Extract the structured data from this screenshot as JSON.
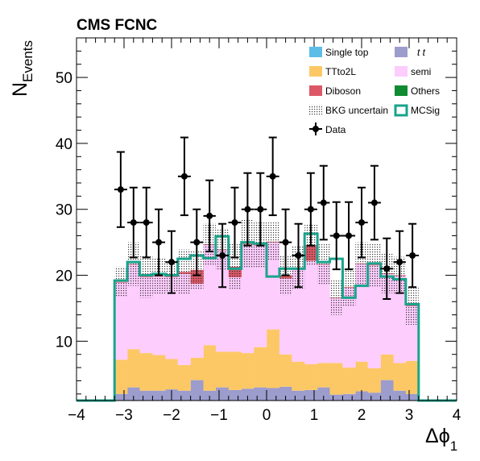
{
  "chart_data": {
    "type": "bar",
    "title": "CMS FCNC",
    "xlabel": "Δϕ",
    "xlabel_sub": "1",
    "ylabel": "N",
    "ylabel_sub": "Events",
    "xlim": [
      -4,
      4
    ],
    "ylim": [
      1,
      56
    ],
    "x_ticks": [
      "−4",
      "−3",
      "−2",
      "−1",
      "0",
      "1",
      "2",
      "3",
      "4"
    ],
    "y_ticks": [
      "10",
      "20",
      "30",
      "40",
      "50"
    ],
    "bin_edges": [
      -3.2,
      -2.93,
      -2.67,
      -2.4,
      -2.13,
      -1.87,
      -1.6,
      -1.33,
      -1.07,
      -0.8,
      -0.53,
      -0.27,
      0,
      0.27,
      0.53,
      0.8,
      1.07,
      1.33,
      1.6,
      1.87,
      2.13,
      2.4,
      2.67,
      2.93,
      3.2
    ],
    "series": [
      {
        "name": "Single top",
        "color": "#5bbde8",
        "values": [
          0.4,
          0.4,
          0.4,
          0.4,
          0.4,
          0.4,
          0.4,
          0.4,
          0.4,
          0.4,
          0.4,
          0.4,
          0.4,
          0.4,
          0.4,
          0.4,
          0.4,
          0.4,
          0.4,
          0.4,
          0.4,
          0.4,
          0.4,
          0.4
        ]
      },
      {
        "name": "t t",
        "color": "#9c9ccd",
        "values": [
          1.6,
          2.6,
          2.1,
          2.1,
          2.3,
          2.1,
          3.7,
          2.1,
          2.6,
          2.2,
          2.4,
          2.6,
          2.5,
          2.7,
          2.1,
          2.2,
          2.6,
          1.5,
          1.6,
          2.0,
          1.8,
          3.7,
          2.1,
          1.6
        ]
      },
      {
        "name": "TTto2L",
        "color": "#fcc865",
        "values": [
          5.2,
          5.8,
          5.7,
          5.4,
          4.6,
          3.9,
          3.4,
          6.9,
          5.4,
          5.8,
          5.4,
          6.1,
          8.9,
          4.9,
          4.4,
          3.9,
          3.7,
          4.8,
          4.0,
          4.5,
          3.7,
          3.9,
          4.2,
          5.0
        ]
      },
      {
        "name": "semi",
        "color": "#fdcdfd",
        "values": [
          11.7,
          12.8,
          11.5,
          11.9,
          12.4,
          13.8,
          11.2,
          15.2,
          15.4,
          11.3,
          16.5,
          15.4,
          13.2,
          11.5,
          14.1,
          15.7,
          14.9,
          9.8,
          12.1,
          14.8,
          15.6,
          12.2,
          13.2,
          8.3
        ]
      },
      {
        "name": "Diboson",
        "color": "#dc5866",
        "values": [
          0.1,
          0.1,
          0.1,
          0.1,
          0.1,
          0.3,
          2.1,
          0.1,
          0.1,
          1.6,
          0.1,
          0.1,
          0.1,
          0.5,
          0.1,
          2.4,
          0.1,
          0.1,
          0.1,
          0.1,
          0.1,
          0.1,
          0.1,
          0.1
        ]
      },
      {
        "name": "Others",
        "color": "#0f8b31",
        "values": [
          0,
          0,
          0,
          0,
          0,
          0,
          0,
          0,
          0,
          0,
          0,
          0,
          0,
          0,
          0,
          0,
          0,
          0,
          0,
          0,
          0,
          0,
          0,
          0
        ]
      }
    ],
    "bkg_uncertainty": {
      "name": "BKG uncertain",
      "values": [
        2.3,
        3.3,
        3.2,
        2.8,
        2.2,
        3.4,
        3.0,
        3.2,
        3.1,
        3.5,
        3.6,
        3.4,
        2.9,
        3.0,
        3.3,
        3.1,
        3.2,
        2.6,
        3.0,
        3.2,
        3.3,
        3.0,
        2.8,
        2.9
      ]
    },
    "mc_signal": {
      "name": "MCSig",
      "color": "#1aa38c",
      "values": [
        19.2,
        22.0,
        20.0,
        20.2,
        20.0,
        22.5,
        23.0,
        22.6,
        25.9,
        21.0,
        25.0,
        24.8,
        19.8,
        21.0,
        21.0,
        26.3,
        22.0,
        22.5,
        16.6,
        18.4,
        21.8,
        19.8,
        19.4,
        15.6
      ]
    },
    "data": {
      "name": "Data",
      "x": [
        -3.07,
        -2.8,
        -2.53,
        -2.27,
        -2.0,
        -1.73,
        -1.47,
        -1.2,
        -0.93,
        -0.67,
        -0.4,
        -0.13,
        0.13,
        0.4,
        0.67,
        0.93,
        1.2,
        1.47,
        1.73,
        2.0,
        2.27,
        2.53,
        2.8,
        3.07
      ],
      "y": [
        33,
        28,
        28,
        25,
        22,
        35,
        25,
        29,
        23,
        28,
        30,
        30,
        35,
        25,
        23,
        30,
        31,
        26,
        26,
        28,
        31,
        21,
        22,
        23
      ],
      "err": [
        5.7,
        5.3,
        5.3,
        5.0,
        4.7,
        5.9,
        5.0,
        5.4,
        4.8,
        5.3,
        5.5,
        5.5,
        5.9,
        5.0,
        4.8,
        5.5,
        5.6,
        5.1,
        5.1,
        5.3,
        5.6,
        4.6,
        4.7,
        4.8
      ]
    },
    "legend": {
      "position": "top-right",
      "entries": [
        {
          "label": "Single top",
          "kind": "fill",
          "color": "#5bbde8"
        },
        {
          "label": "t t",
          "kind": "fill",
          "color": "#9c9ccd"
        },
        {
          "label": "TTto2L",
          "kind": "fill",
          "color": "#fcc865"
        },
        {
          "label": "semi",
          "kind": "fill",
          "color": "#fdcdfd"
        },
        {
          "label": "Diboson",
          "kind": "fill",
          "color": "#dc5866"
        },
        {
          "label": "Others",
          "kind": "fill",
          "color": "#0f8b31"
        },
        {
          "label": "BKG uncertain",
          "kind": "hatch",
          "color": "#555555"
        },
        {
          "label": "MCSig",
          "kind": "line",
          "color": "#1aa38c"
        },
        {
          "label": "Data",
          "kind": "marker",
          "color": "#000000"
        }
      ]
    },
    "grid": false
  }
}
